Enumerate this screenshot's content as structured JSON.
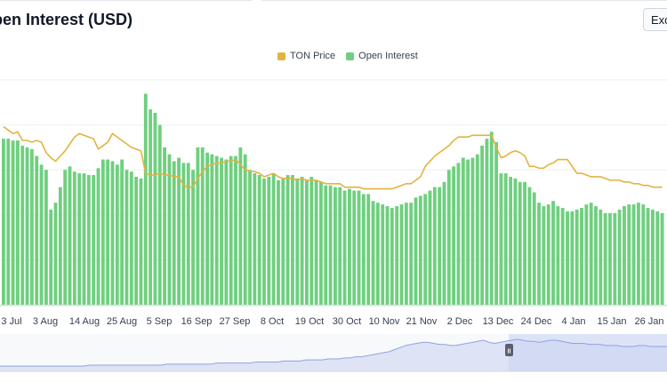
{
  "header": {
    "title": "pen Interest (USD)",
    "export_label": "Exco"
  },
  "legend": [
    {
      "label": "TON Price",
      "color": "#e3b341"
    },
    {
      "label": "Open Interest",
      "color": "#6fcf7f"
    }
  ],
  "navigator": {
    "handle_glyph": "II"
  },
  "chart_data": {
    "type": "bar",
    "x_tick_labels": [
      "3 Jul",
      "3 Aug",
      "14 Aug",
      "25 Aug",
      "5 Sep",
      "16 Sep",
      "27 Sep",
      "8 Oct",
      "19 Oct",
      "30 Oct",
      "10 Nov",
      "21 Nov",
      "2 Dec",
      "13 Dec",
      "24 Dec",
      "4 Jan",
      "15 Jan",
      "26 Jan"
    ],
    "legend_position": "top-center",
    "grid": true,
    "series": [
      {
        "name": "Open Interest",
        "kind": "bar",
        "color": "#6fcf7f",
        "values": [
          96,
          96,
          95,
          95,
          92,
          91,
          90,
          86,
          81,
          78,
          55,
          59,
          68,
          78,
          80,
          77,
          76,
          76,
          75,
          75,
          79,
          84,
          84,
          83,
          81,
          84,
          78,
          77,
          74,
          73,
          122,
          113,
          111,
          104,
          91,
          87,
          83,
          85,
          82,
          82,
          78,
          91,
          91,
          88,
          87,
          86,
          85,
          84,
          86,
          86,
          91,
          87,
          78,
          76,
          75,
          73,
          74,
          76,
          72,
          73,
          75,
          75,
          73,
          74,
          72,
          74,
          72,
          71,
          69,
          69,
          68,
          68,
          66,
          67,
          66,
          66,
          64,
          64,
          60,
          59,
          58,
          57,
          56,
          57,
          58,
          59,
          59,
          62,
          63,
          64,
          66,
          68,
          68,
          71,
          78,
          80,
          82,
          85,
          84,
          85,
          87,
          92,
          96,
          100,
          94,
          76,
          76,
          74,
          73,
          71,
          71,
          68,
          65,
          59,
          57,
          58,
          60,
          57,
          56,
          54,
          54,
          55,
          56,
          58,
          59,
          57,
          55,
          53,
          53,
          53,
          55,
          57,
          58,
          58,
          59,
          58,
          56,
          55,
          54,
          53
        ]
      },
      {
        "name": "TON Price",
        "kind": "line",
        "color": "#e3b341",
        "values": [
          103,
          101,
          99,
          100,
          95,
          95,
          94,
          95,
          94,
          88,
          85,
          83,
          86,
          89,
          93,
          97,
          99,
          98,
          97,
          96,
          90,
          92,
          94,
          99,
          97,
          95,
          93,
          91,
          90,
          89,
          76,
          75,
          75,
          76,
          75,
          75,
          74,
          74,
          69,
          68,
          68,
          73,
          77,
          80,
          81,
          82,
          82,
          83,
          83,
          84,
          81,
          78,
          77,
          77,
          76,
          74,
          75,
          76,
          74,
          73,
          73,
          73,
          72,
          73,
          72,
          72,
          72,
          71,
          70,
          70,
          70,
          70,
          68,
          68,
          68,
          68,
          67,
          67,
          67,
          67,
          67,
          67,
          67,
          68,
          69,
          70,
          70,
          72,
          74,
          80,
          83,
          86,
          88,
          90,
          92,
          95,
          97,
          97,
          97,
          98,
          98,
          98,
          98,
          98,
          91,
          85,
          86,
          88,
          89,
          88,
          86,
          80,
          80,
          79,
          79,
          81,
          82,
          84,
          84,
          84,
          80,
          76,
          76,
          75,
          74,
          74,
          74,
          73,
          72,
          72,
          72,
          71,
          71,
          70,
          70,
          69,
          69,
          68,
          68,
          68
        ]
      }
    ],
    "navigator_values": [
      5,
      5,
      5,
      5,
      5,
      5,
      5,
      5,
      5,
      5,
      5,
      5,
      5,
      5,
      5,
      5,
      6,
      6,
      6,
      6,
      6,
      6,
      6,
      6,
      6,
      6,
      6,
      6,
      6,
      6,
      7,
      7,
      7,
      7,
      7,
      7,
      7,
      7,
      7,
      8,
      8,
      8,
      8,
      8,
      8,
      8,
      9,
      9,
      9,
      9,
      9,
      10,
      10,
      10,
      10,
      11,
      11,
      11,
      11,
      12,
      12,
      12,
      13,
      13,
      14,
      14,
      15,
      16,
      17,
      18,
      19,
      21,
      23,
      25,
      26,
      27,
      28,
      28,
      27,
      26,
      26,
      25,
      25,
      26,
      27,
      28,
      29,
      30,
      28,
      27,
      28,
      29,
      30,
      31,
      30,
      29,
      29,
      28,
      29,
      30,
      30,
      29,
      28,
      27,
      27,
      27,
      26,
      26,
      26,
      25,
      25,
      25,
      24,
      24,
      24,
      25,
      25,
      24,
      24,
      24,
      24
    ]
  }
}
